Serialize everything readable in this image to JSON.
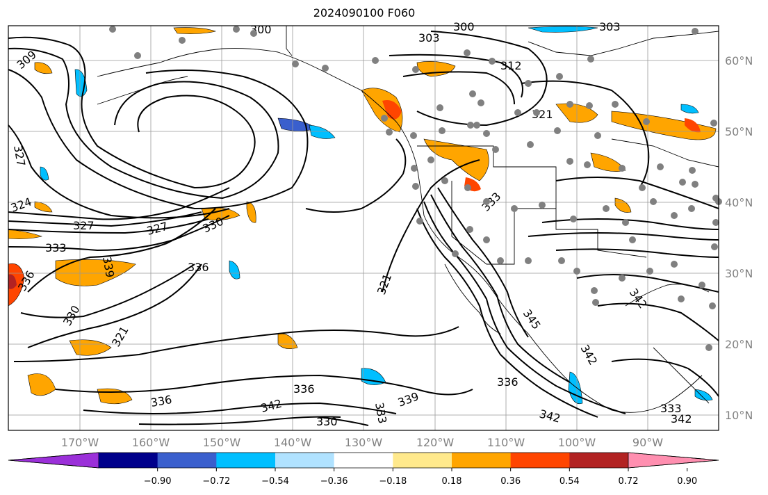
{
  "title": "2024090100 F060",
  "lat_labels": [
    "60°N",
    "50°N",
    "40°N",
    "30°N",
    "20°N",
    "10°N"
  ],
  "lon_labels": [
    "170°W",
    "160°W",
    "150°W",
    "140°W",
    "130°W",
    "120°W",
    "110°W",
    "100°W",
    "90°W"
  ],
  "colorbar": {
    "ticks": [
      "−0.90",
      "−0.72",
      "−0.54",
      "−0.36",
      "−0.18",
      "0.18",
      "0.36",
      "0.54",
      "0.72",
      "0.90"
    ],
    "colors": [
      "#9b30d9",
      "#00008b",
      "#3a5fcd",
      "#00bfff",
      "#b0e2ff",
      "#ffffff",
      "#ffe98c",
      "#ffa500",
      "#ff4500",
      "#b22222",
      "#ff8fb0"
    ]
  },
  "contour_labels": [
    "300",
    "303",
    "300",
    "303",
    "309",
    "312",
    "321",
    "327",
    "324",
    "327",
    "327",
    "330",
    "333",
    "336",
    "339",
    "336",
    "330",
    "321",
    "321",
    "333",
    "345",
    "342",
    "342",
    "336",
    "342",
    "339",
    "336",
    "342",
    "330",
    "333",
    "333",
    "342",
    "336"
  ],
  "station_marker_color": "#808080"
}
